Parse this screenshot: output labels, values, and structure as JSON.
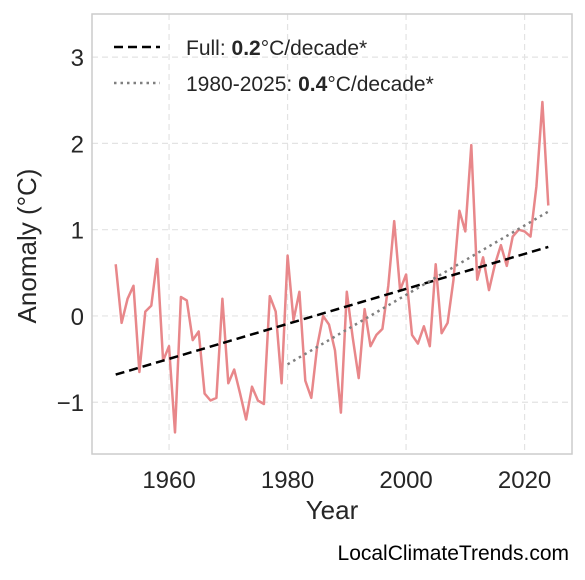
{
  "footer": {
    "credit": "LocalClimateTrends.com"
  },
  "chart_data": {
    "type": "line",
    "title": "",
    "xlabel": "Year",
    "ylabel": "Anomaly (°C)",
    "xlim": [
      1947,
      2028
    ],
    "ylim": [
      -1.6,
      3.5
    ],
    "xticks": [
      1960,
      1980,
      2000,
      2020
    ],
    "yticks": [
      3,
      2,
      1,
      0,
      -1
    ],
    "ytick_labels": [
      "3",
      "2",
      "1",
      "0",
      "−1"
    ],
    "grid": true,
    "legend_position": "top-left",
    "series": [
      {
        "style": "solid",
        "color": "#e8878a",
        "x": [
          1951,
          1952,
          1953,
          1954,
          1955,
          1956,
          1957,
          1958,
          1959,
          1960,
          1961,
          1962,
          1963,
          1964,
          1965,
          1966,
          1967,
          1968,
          1969,
          1970,
          1971,
          1972,
          1973,
          1974,
          1975,
          1976,
          1977,
          1978,
          1979,
          1980,
          1981,
          1982,
          1983,
          1984,
          1985,
          1986,
          1987,
          1988,
          1989,
          1990,
          1991,
          1992,
          1993,
          1994,
          1995,
          1996,
          1997,
          1998,
          1999,
          2000,
          2001,
          2002,
          2003,
          2004,
          2005,
          2006,
          2007,
          2008,
          2009,
          2010,
          2011,
          2012,
          2013,
          2014,
          2015,
          2016,
          2017,
          2018,
          2019,
          2020,
          2021,
          2022,
          2023,
          2024
        ],
        "y": [
          0.6,
          -0.08,
          0.2,
          0.35,
          -0.65,
          0.05,
          0.12,
          0.66,
          -0.52,
          -0.35,
          -1.35,
          0.22,
          0.18,
          -0.28,
          -0.18,
          -0.9,
          -0.98,
          -0.95,
          0.2,
          -0.78,
          -0.62,
          -0.9,
          -1.2,
          -0.82,
          -0.98,
          -1.02,
          0.23,
          0.05,
          -0.78,
          0.7,
          -0.05,
          0.28,
          -0.75,
          -0.95,
          -0.35,
          0.0,
          -0.1,
          -0.4,
          -1.12,
          0.28,
          -0.25,
          -0.72,
          0.08,
          -0.35,
          -0.22,
          -0.15,
          0.35,
          1.1,
          0.3,
          0.48,
          -0.22,
          -0.32,
          -0.12,
          -0.35,
          0.6,
          -0.2,
          -0.08,
          0.42,
          1.22,
          0.98,
          1.98,
          0.42,
          0.68,
          0.3,
          0.6,
          0.82,
          0.58,
          0.92,
          1.0,
          0.98,
          0.92,
          1.5,
          2.48,
          1.28
        ]
      },
      {
        "name": "Full: 0.2°C/decade*",
        "style": "dashed",
        "color": "#000000",
        "x": [
          1951,
          2024
        ],
        "y": [
          -0.68,
          0.8
        ]
      },
      {
        "name": "1980-2025: 0.4°C/decade*",
        "style": "dotted",
        "color": "#7f7f7f",
        "x": [
          1980,
          2024
        ],
        "y": [
          -0.56,
          1.21
        ]
      }
    ],
    "legend": [
      {
        "prefix": "Full: ",
        "rate": "0.2",
        "suffix": "°C/decade*"
      },
      {
        "prefix": "1980-2025: ",
        "rate": "0.4",
        "suffix": "°C/decade*"
      }
    ]
  }
}
